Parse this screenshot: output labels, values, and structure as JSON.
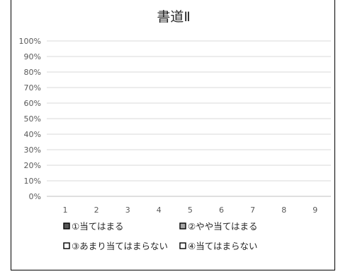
{
  "chart_data": {
    "type": "bar",
    "title": "書道Ⅱ",
    "categories": [
      "1",
      "2",
      "3",
      "4",
      "5",
      "6",
      "7",
      "8",
      "9"
    ],
    "y_ticks": [
      "0%",
      "10%",
      "20%",
      "30%",
      "40%",
      "50%",
      "60%",
      "70%",
      "80%",
      "90%",
      "100%"
    ],
    "ylim": [
      0,
      100
    ],
    "stacked": true,
    "grid": true,
    "legend_position": "bottom",
    "series": [
      {
        "name": "①当てはまる",
        "color": "#595959",
        "values": [
          0,
          0,
          0,
          0,
          0,
          0,
          0,
          0,
          0
        ]
      },
      {
        "name": "②やや当てはまる",
        "color": "#a6a6a6",
        "values": [
          0,
          0,
          0,
          0,
          0,
          0,
          0,
          0,
          0
        ]
      },
      {
        "name": "③あまり当てはまらない",
        "color": "#ffffff",
        "values": [
          0,
          0,
          0,
          0,
          0,
          0,
          0,
          0,
          0
        ]
      },
      {
        "name": "④当てはまらない",
        "color": "#ffffff",
        "values": [
          0,
          0,
          0,
          0,
          0,
          0,
          0,
          0,
          0
        ]
      }
    ]
  }
}
